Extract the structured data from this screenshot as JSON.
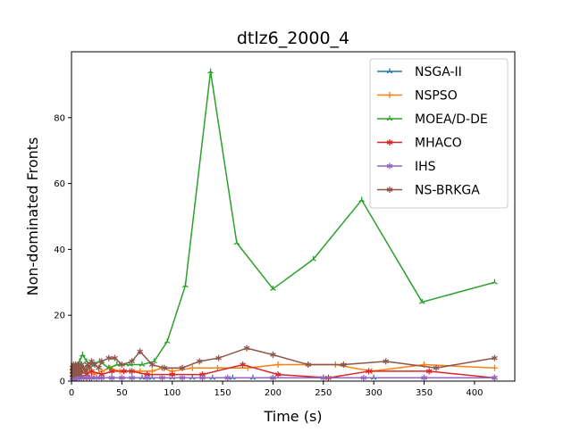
{
  "chart_data": {
    "type": "line",
    "title": "dtlz6_2000_4",
    "xlabel": "Time (s)",
    "ylabel": "Non-dominated Fronts",
    "xlim": [
      0,
      440
    ],
    "ylim": [
      0,
      100
    ],
    "xticks": [
      0,
      50,
      100,
      150,
      200,
      250,
      300,
      350,
      400
    ],
    "yticks": [
      0,
      20,
      40,
      60,
      80
    ],
    "grid": false,
    "legend_position": "top-right",
    "series": [
      {
        "name": "NSGA-II",
        "color": "#1f77b4",
        "marker": "tri",
        "x": [
          1,
          3,
          5,
          8,
          12,
          20,
          30,
          40,
          50,
          60,
          70,
          80,
          100,
          120,
          140,
          160,
          180,
          200,
          250,
          300,
          350,
          420
        ],
        "y": [
          1,
          1,
          1,
          1,
          1,
          1,
          1,
          1,
          1,
          1,
          1,
          1,
          1,
          1,
          1,
          1,
          1,
          1,
          1,
          1,
          1,
          1
        ]
      },
      {
        "name": "NSPSO",
        "color": "#ff7f0e",
        "marker": "plus",
        "x": [
          2,
          5,
          10,
          16,
          22,
          30,
          38,
          48,
          58,
          68,
          80,
          90,
          100,
          120,
          145,
          175,
          205,
          235,
          262,
          298,
          350,
          420
        ],
        "y": [
          3,
          3,
          4,
          3,
          2,
          3,
          4,
          3,
          3,
          3,
          3,
          4,
          3,
          4,
          4,
          4,
          5,
          5,
          5,
          3,
          5,
          4
        ]
      },
      {
        "name": "MOEA/D-DE",
        "color": "#2ca02c",
        "marker": "tri",
        "x": [
          1,
          3,
          5,
          8,
          11,
          15,
          20,
          28,
          37,
          45,
          58,
          70,
          82,
          95,
          113,
          138,
          164,
          200,
          240,
          288,
          348,
          420
        ],
        "y": [
          2,
          3,
          4,
          6,
          8,
          6,
          5,
          6,
          4,
          5,
          5,
          5,
          6,
          12,
          29,
          94,
          42,
          28,
          37,
          55,
          24,
          30
        ]
      },
      {
        "name": "MHACO",
        "color": "#d62728",
        "marker": "star",
        "x": [
          2,
          4,
          6,
          10,
          15,
          20,
          30,
          40,
          52,
          60,
          75,
          100,
          130,
          170,
          205,
          255,
          295,
          355,
          420
        ],
        "y": [
          2,
          3,
          2,
          3,
          2,
          3,
          2,
          3,
          3,
          3,
          2,
          2,
          2,
          5,
          2,
          1,
          3,
          3,
          1
        ]
      },
      {
        "name": "IHS",
        "color": "#9467bd",
        "marker": "star",
        "x": [
          1,
          2,
          3,
          4,
          5,
          6,
          8,
          10,
          12,
          15,
          18,
          20,
          25,
          30,
          40,
          50,
          60,
          75,
          90,
          110,
          130,
          155,
          200,
          250,
          290,
          350,
          420
        ],
        "y": [
          1,
          1,
          1,
          1,
          1,
          1,
          1,
          1,
          1,
          1,
          1,
          1,
          1,
          1,
          1,
          1,
          1,
          1,
          1,
          1,
          1,
          1,
          1,
          1,
          1,
          1,
          1
        ]
      },
      {
        "name": "NS-BRKGA",
        "color": "#8c564b",
        "marker": "star",
        "x": [
          1,
          1,
          1,
          2,
          2,
          3,
          3,
          4,
          4,
          5,
          6,
          7,
          8,
          9,
          10,
          12,
          14,
          16,
          18,
          20,
          23,
          27,
          30,
          37,
          43,
          50,
          60,
          68,
          80,
          92,
          110,
          127,
          146,
          174,
          200,
          235,
          270,
          312,
          362,
          420
        ],
        "y": [
          2,
          4,
          3,
          5,
          2,
          4,
          3,
          5,
          2,
          4,
          3,
          5,
          4,
          2,
          5,
          4,
          3,
          5,
          4,
          6,
          5,
          4,
          6,
          7,
          7,
          5,
          6,
          9,
          5,
          4,
          4,
          6,
          7,
          10,
          8,
          5,
          5,
          6,
          4,
          7
        ]
      }
    ]
  }
}
